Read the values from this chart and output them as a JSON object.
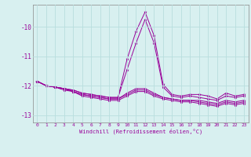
{
  "x": [
    0,
    1,
    2,
    3,
    4,
    5,
    6,
    7,
    8,
    9,
    10,
    11,
    12,
    13,
    14,
    15,
    16,
    17,
    18,
    19,
    20,
    21,
    22,
    23
  ],
  "line1": [
    -11.85,
    -12.0,
    -12.05,
    -12.1,
    -12.15,
    -12.25,
    -12.3,
    -12.35,
    -12.4,
    -12.4,
    -11.1,
    -10.15,
    -9.5,
    -10.3,
    -11.95,
    -12.3,
    -12.35,
    -12.3,
    -12.3,
    -12.35,
    -12.45,
    -12.25,
    -12.35,
    -12.3
  ],
  "line2": [
    -11.85,
    -12.0,
    -12.05,
    -12.1,
    -12.15,
    -12.25,
    -12.3,
    -12.35,
    -12.4,
    -12.4,
    -11.45,
    -10.55,
    -9.75,
    -10.55,
    -12.05,
    -12.35,
    -12.4,
    -12.35,
    -12.4,
    -12.45,
    -12.5,
    -12.35,
    -12.4,
    -12.35
  ],
  "line3": [
    -11.85,
    -12.0,
    -12.05,
    -12.1,
    -12.2,
    -12.3,
    -12.35,
    -12.4,
    -12.45,
    -12.45,
    -12.25,
    -12.1,
    -12.1,
    -12.25,
    -12.4,
    -12.45,
    -12.5,
    -12.5,
    -12.5,
    -12.55,
    -12.6,
    -12.5,
    -12.55,
    -12.5
  ],
  "line4": [
    -11.85,
    -12.0,
    -12.05,
    -12.1,
    -12.2,
    -12.3,
    -12.35,
    -12.4,
    -12.45,
    -12.45,
    -12.3,
    -12.15,
    -12.15,
    -12.3,
    -12.4,
    -12.45,
    -12.5,
    -12.5,
    -12.55,
    -12.6,
    -12.65,
    -12.55,
    -12.6,
    -12.55
  ],
  "line5": [
    -11.85,
    -12.0,
    -12.05,
    -12.15,
    -12.2,
    -12.35,
    -12.4,
    -12.45,
    -12.5,
    -12.5,
    -12.35,
    -12.2,
    -12.2,
    -12.35,
    -12.45,
    -12.5,
    -12.55,
    -12.55,
    -12.6,
    -12.65,
    -12.7,
    -12.6,
    -12.65,
    -12.6
  ],
  "color": "#990099",
  "bg_color": "#d8f0f0",
  "grid_color": "#b8dede",
  "xlabel": "Windchill (Refroidissement éolien,°C)",
  "ylim_min": -13.25,
  "ylim_max": -9.25,
  "xlim_min": -0.5,
  "xlim_max": 23.5,
  "yticks": [
    -13,
    -12,
    -11,
    -10
  ],
  "xticks": [
    0,
    1,
    2,
    3,
    4,
    5,
    6,
    7,
    8,
    9,
    10,
    11,
    12,
    13,
    14,
    15,
    16,
    17,
    18,
    19,
    20,
    21,
    22,
    23
  ]
}
